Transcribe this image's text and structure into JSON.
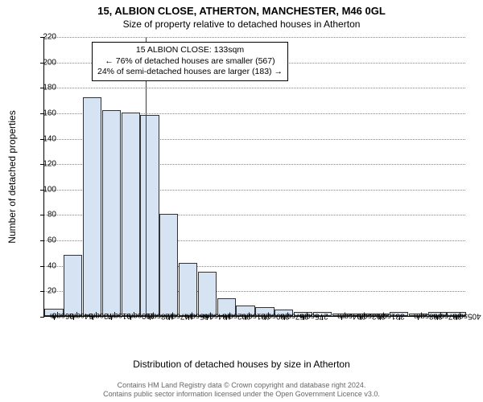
{
  "title": "15, ALBION CLOSE, ATHERTON, MANCHESTER, M46 0GL",
  "subtitle": "Size of property relative to detached houses in Atherton",
  "y_axis_label": "Number of detached properties",
  "x_axis_label": "Distribution of detached houses by size in Atherton",
  "chart": {
    "type": "histogram",
    "ylim": [
      0,
      220
    ],
    "ytick_step": 20,
    "bar_fill": "#d6e3f3",
    "bar_border": "#333333",
    "grid_color": "#888888",
    "background_color": "#ffffff",
    "ref_line_color": "#cc0000",
    "ref_line_x_index": 5.3,
    "categories": [
      "36sqm",
      "54sqm",
      "73sqm",
      "91sqm",
      "110sqm",
      "128sqm",
      "147sqm",
      "165sqm",
      "184sqm",
      "202sqm",
      "221sqm",
      "239sqm",
      "257sqm",
      "275sqm",
      "276sqm",
      "294sqm",
      "313sqm",
      "331sqm",
      "350sqm",
      "368sqm",
      "387sqm",
      "405sqm"
    ],
    "show_label": [
      true,
      true,
      true,
      true,
      true,
      true,
      true,
      true,
      true,
      true,
      true,
      true,
      true,
      true,
      false,
      true,
      true,
      true,
      false,
      true,
      true,
      true
    ],
    "values": [
      6,
      48,
      172,
      162,
      160,
      158,
      80,
      42,
      35,
      14,
      8,
      7,
      5,
      3,
      3,
      2,
      2,
      2,
      3,
      2,
      3,
      3
    ]
  },
  "annotation": {
    "line1": "15 ALBION CLOSE: 133sqm",
    "line2": "← 76% of detached houses are smaller (567)",
    "line3": "24% of semi-detached houses are larger (183) →"
  },
  "footer_line1": "Contains HM Land Registry data © Crown copyright and database right 2024.",
  "footer_line2": "Contains public sector information licensed under the Open Government Licence v3.0."
}
